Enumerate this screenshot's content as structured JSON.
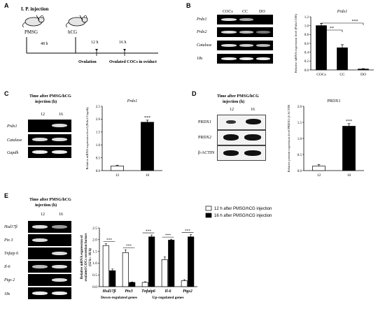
{
  "panel_letters": [
    "A",
    "B",
    "C",
    "D",
    "E"
  ],
  "panel_a": {
    "header": "I. P. injection",
    "pmsg": "PMSG",
    "hcg": "hCG",
    "interval": "48 h",
    "t12": "12 h",
    "t16": "16 h",
    "ovulation": "Ovulation",
    "ovulated": "Ovulated COCs in oviduct"
  },
  "panel_b": {
    "lane_labels": [
      "COCs",
      "CC",
      "DO"
    ],
    "genes": [
      "Prdx1",
      "Prdx2",
      "Catalase",
      "18s"
    ]
  },
  "panel_c": {
    "time_label_1": "Time after PMSG/hCG",
    "time_label_2": "injection (h)",
    "lanes": [
      "12",
      "16"
    ],
    "genes": [
      "Prdx1",
      "Catalase",
      "Gapdh"
    ]
  },
  "panel_d": {
    "time_label_1": "Time after PMSG/hCG",
    "time_label_2": "injection (h)",
    "lanes": [
      "12",
      "16"
    ],
    "proteins": [
      "PRDX1",
      "PRDX2",
      "β-ACTIN"
    ]
  },
  "panel_e": {
    "time_label_1": "Time after PMSG/hCG",
    "time_label_2": "injection (h)",
    "lanes": [
      "12",
      "16"
    ],
    "genes": [
      "Hsd17β",
      "Ptx 3",
      "Tnfaip 6",
      "Il-6",
      "Ptgs 2",
      "18s"
    ],
    "group_down": "Down-regulated genes",
    "group_up": "Up-regulated genes"
  },
  "chart_data": [
    {
      "panel": "B",
      "type": "bar",
      "title": "Prdx1",
      "categories": [
        "COCs",
        "CC",
        "DO"
      ],
      "values": [
        1.0,
        0.5,
        0.02
      ],
      "errors": [
        0.05,
        0.07,
        0.01
      ],
      "ylabel": "Relative mRNA expression level (Prdx1/18S)",
      "ylim": [
        0,
        1.2
      ],
      "yticks": [
        "0.0",
        "0.2",
        "0.4",
        "0.6",
        "0.8",
        "1.0",
        "1.2"
      ],
      "significance": [
        "**",
        "***"
      ]
    },
    {
      "panel": "C",
      "type": "bar",
      "title": "Prdx1",
      "categories": [
        "12",
        "16"
      ],
      "values": [
        0.18,
        1.88
      ],
      "errors": [
        0.03,
        0.08
      ],
      "ylabel": "Relative mRNA expression level (Prdx1/Gapdh)",
      "ylim": [
        0,
        2.5
      ],
      "yticks": [
        "0.0",
        "0.5",
        "1.0",
        "1.5",
        "2.0",
        "2.5"
      ],
      "significance": [
        "***"
      ]
    },
    {
      "panel": "D",
      "type": "bar",
      "title": "PRDX1",
      "categories": [
        "12",
        "16"
      ],
      "values": [
        0.14,
        1.38
      ],
      "errors": [
        0.05,
        0.08
      ],
      "ylabel": "Relative protein expression level PRDX1/ β-ACTIN",
      "ylim": [
        0,
        2.0
      ],
      "yticks": [
        "0.0",
        "0.5",
        "1.0",
        "1.5",
        "2.0"
      ],
      "significance": [
        "***"
      ]
    },
    {
      "panel": "E",
      "type": "bar",
      "categories": [
        "Hsd17β",
        "Ptx3",
        "Tnfaip6",
        "Il-6",
        "Ptgs2"
      ],
      "ylabel": "Relative mRNA expression of ovulated COCs secretion factors (12 h : 16 h)",
      "ylim": [
        0,
        2.5
      ],
      "yticks": [
        "0.0",
        "0.5",
        "1.0",
        "1.5",
        "2.0",
        "2.5"
      ],
      "series": [
        {
          "name": "12 h after PMSG/hCG injection",
          "color": "#ffffff",
          "values": [
            1.75,
            1.45,
            0.18,
            1.15,
            0.25
          ],
          "errors": [
            0.08,
            0.12,
            0.03,
            0.12,
            0.05
          ]
        },
        {
          "name": "16 h after PMSG/hCG injection",
          "color": "#000000",
          "values": [
            0.68,
            0.18,
            2.12,
            1.98,
            2.12
          ],
          "errors": [
            0.07,
            0.02,
            0.08,
            0.04,
            0.1
          ]
        }
      ],
      "significance": [
        "***",
        "***",
        "***",
        "***",
        "***"
      ]
    }
  ]
}
